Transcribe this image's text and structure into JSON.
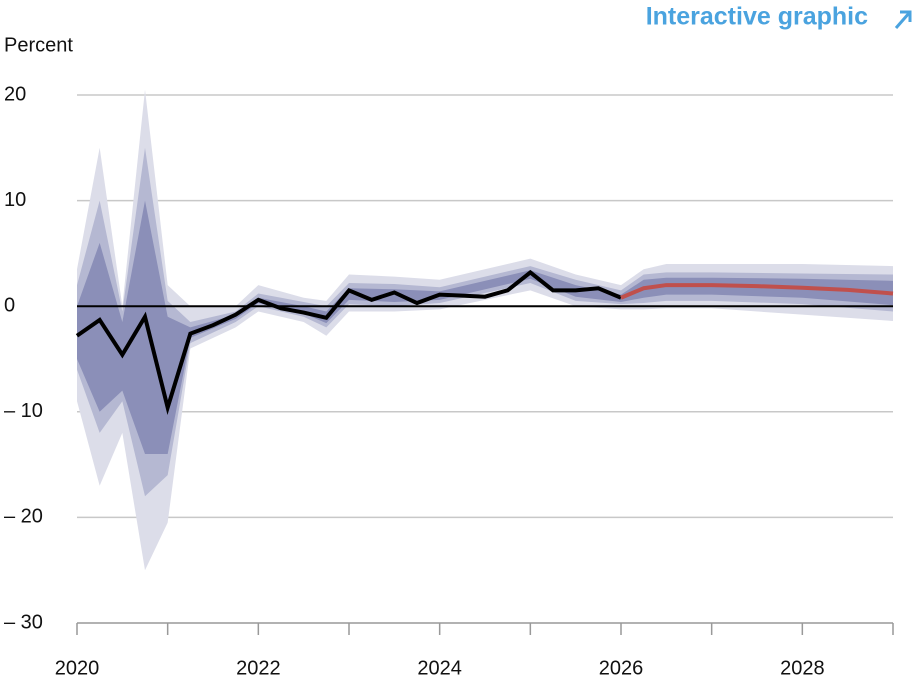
{
  "chart_data": {
    "type": "fan",
    "link_text": "Interactive graphic",
    "ylabel": "Percent",
    "xlim": [
      2020,
      2029
    ],
    "xticks": [
      2020,
      2022,
      2024,
      2026,
      2028
    ],
    "xminor_ticks": [
      2021,
      2023,
      2025,
      2027,
      2029
    ],
    "ylim": [
      -30,
      20
    ],
    "yticks": [
      {
        "value": 20,
        "label": "20"
      },
      {
        "value": 10,
        "label": "10"
      },
      {
        "value": 0,
        "label": "0"
      },
      {
        "value": -10,
        "label": "– 10"
      },
      {
        "value": -20,
        "label": "– 20"
      },
      {
        "value": -30,
        "label": "– 30"
      }
    ],
    "grid": true,
    "band_x": [
      2020,
      2020.25,
      2020.5,
      2020.75,
      2021,
      2021.25,
      2021.75,
      2022,
      2022.5,
      2022.75,
      2023,
      2023.5,
      2024,
      2025,
      2025.5,
      2026,
      2026.25,
      2026.5,
      2027,
      2028,
      2029
    ],
    "bands": [
      {
        "color": "#dcdde9",
        "upper": [
          3.5,
          15,
          0,
          20.5,
          2,
          0,
          0,
          2,
          0.8,
          0.5,
          3,
          2.8,
          2.5,
          4.5,
          3,
          2,
          3.5,
          4,
          4,
          4,
          3.8
        ],
        "lower": [
          -9,
          -17,
          -12,
          -25,
          -20.5,
          -4,
          -2,
          -0.5,
          -1.5,
          -2.8,
          -0.5,
          -0.5,
          -0.3,
          1.5,
          0,
          -0.3,
          -0.3,
          -0.2,
          -0.2,
          -0.8,
          -1.4
        ]
      },
      {
        "color": "#b5b8d2",
        "upper": [
          2,
          10,
          -0.5,
          15,
          0.5,
          -1.5,
          -0.5,
          1.2,
          0.4,
          0,
          2.2,
          2.1,
          1.8,
          3.8,
          2.5,
          1.5,
          3,
          3.2,
          3.2,
          3.1,
          3.0
        ],
        "lower": [
          -6,
          -12,
          -9,
          -18,
          -16,
          -3.5,
          -1.5,
          0,
          -1,
          -2,
          0.2,
          0,
          0.3,
          2.2,
          0.5,
          0.2,
          0.3,
          0.5,
          0.5,
          0.2,
          -0.5
        ]
      },
      {
        "color": "#8b8fb8",
        "upper": [
          0,
          6,
          -1.5,
          10,
          -1,
          -2,
          -0.8,
          0.8,
          0,
          -0.5,
          1.7,
          1.6,
          1.4,
          3.4,
          2,
          1.1,
          2.5,
          2.7,
          2.7,
          2.6,
          2.4
        ],
        "lower": [
          -5,
          -10,
          -8,
          -14,
          -14,
          -3,
          -1.2,
          0.3,
          -0.7,
          -1.6,
          0.6,
          0.4,
          0.6,
          2.6,
          0.9,
          0.4,
          0.8,
          1.1,
          1.1,
          0.8,
          0.1
        ]
      }
    ],
    "series": [
      {
        "color": "#000000",
        "x": [
          2020,
          2020.25,
          2020.5,
          2020.75,
          2021,
          2021.25,
          2021.5,
          2021.75,
          2022,
          2022.25,
          2022.5,
          2022.75,
          2023,
          2023.25,
          2023.5,
          2023.75,
          2024,
          2024.25,
          2024.5,
          2024.75,
          2025,
          2025.25,
          2025.5,
          2025.75,
          2026
        ],
        "values": [
          -2.8,
          -1.3,
          -4.6,
          -1.0,
          -9.6,
          -2.6,
          -1.8,
          -0.8,
          0.6,
          -0.2,
          -0.6,
          -1.1,
          1.5,
          0.6,
          1.3,
          0.3,
          1.1,
          1.0,
          0.9,
          1.5,
          3.2,
          1.5,
          1.5,
          1.7,
          0.8
        ]
      },
      {
        "color": "#c0504d",
        "x": [
          2026,
          2026.25,
          2026.5,
          2026.75,
          2027,
          2027.5,
          2028,
          2028.5,
          2029
        ],
        "values": [
          0.8,
          1.7,
          2.0,
          2.0,
          2.0,
          1.9,
          1.75,
          1.55,
          1.2
        ]
      }
    ]
  }
}
